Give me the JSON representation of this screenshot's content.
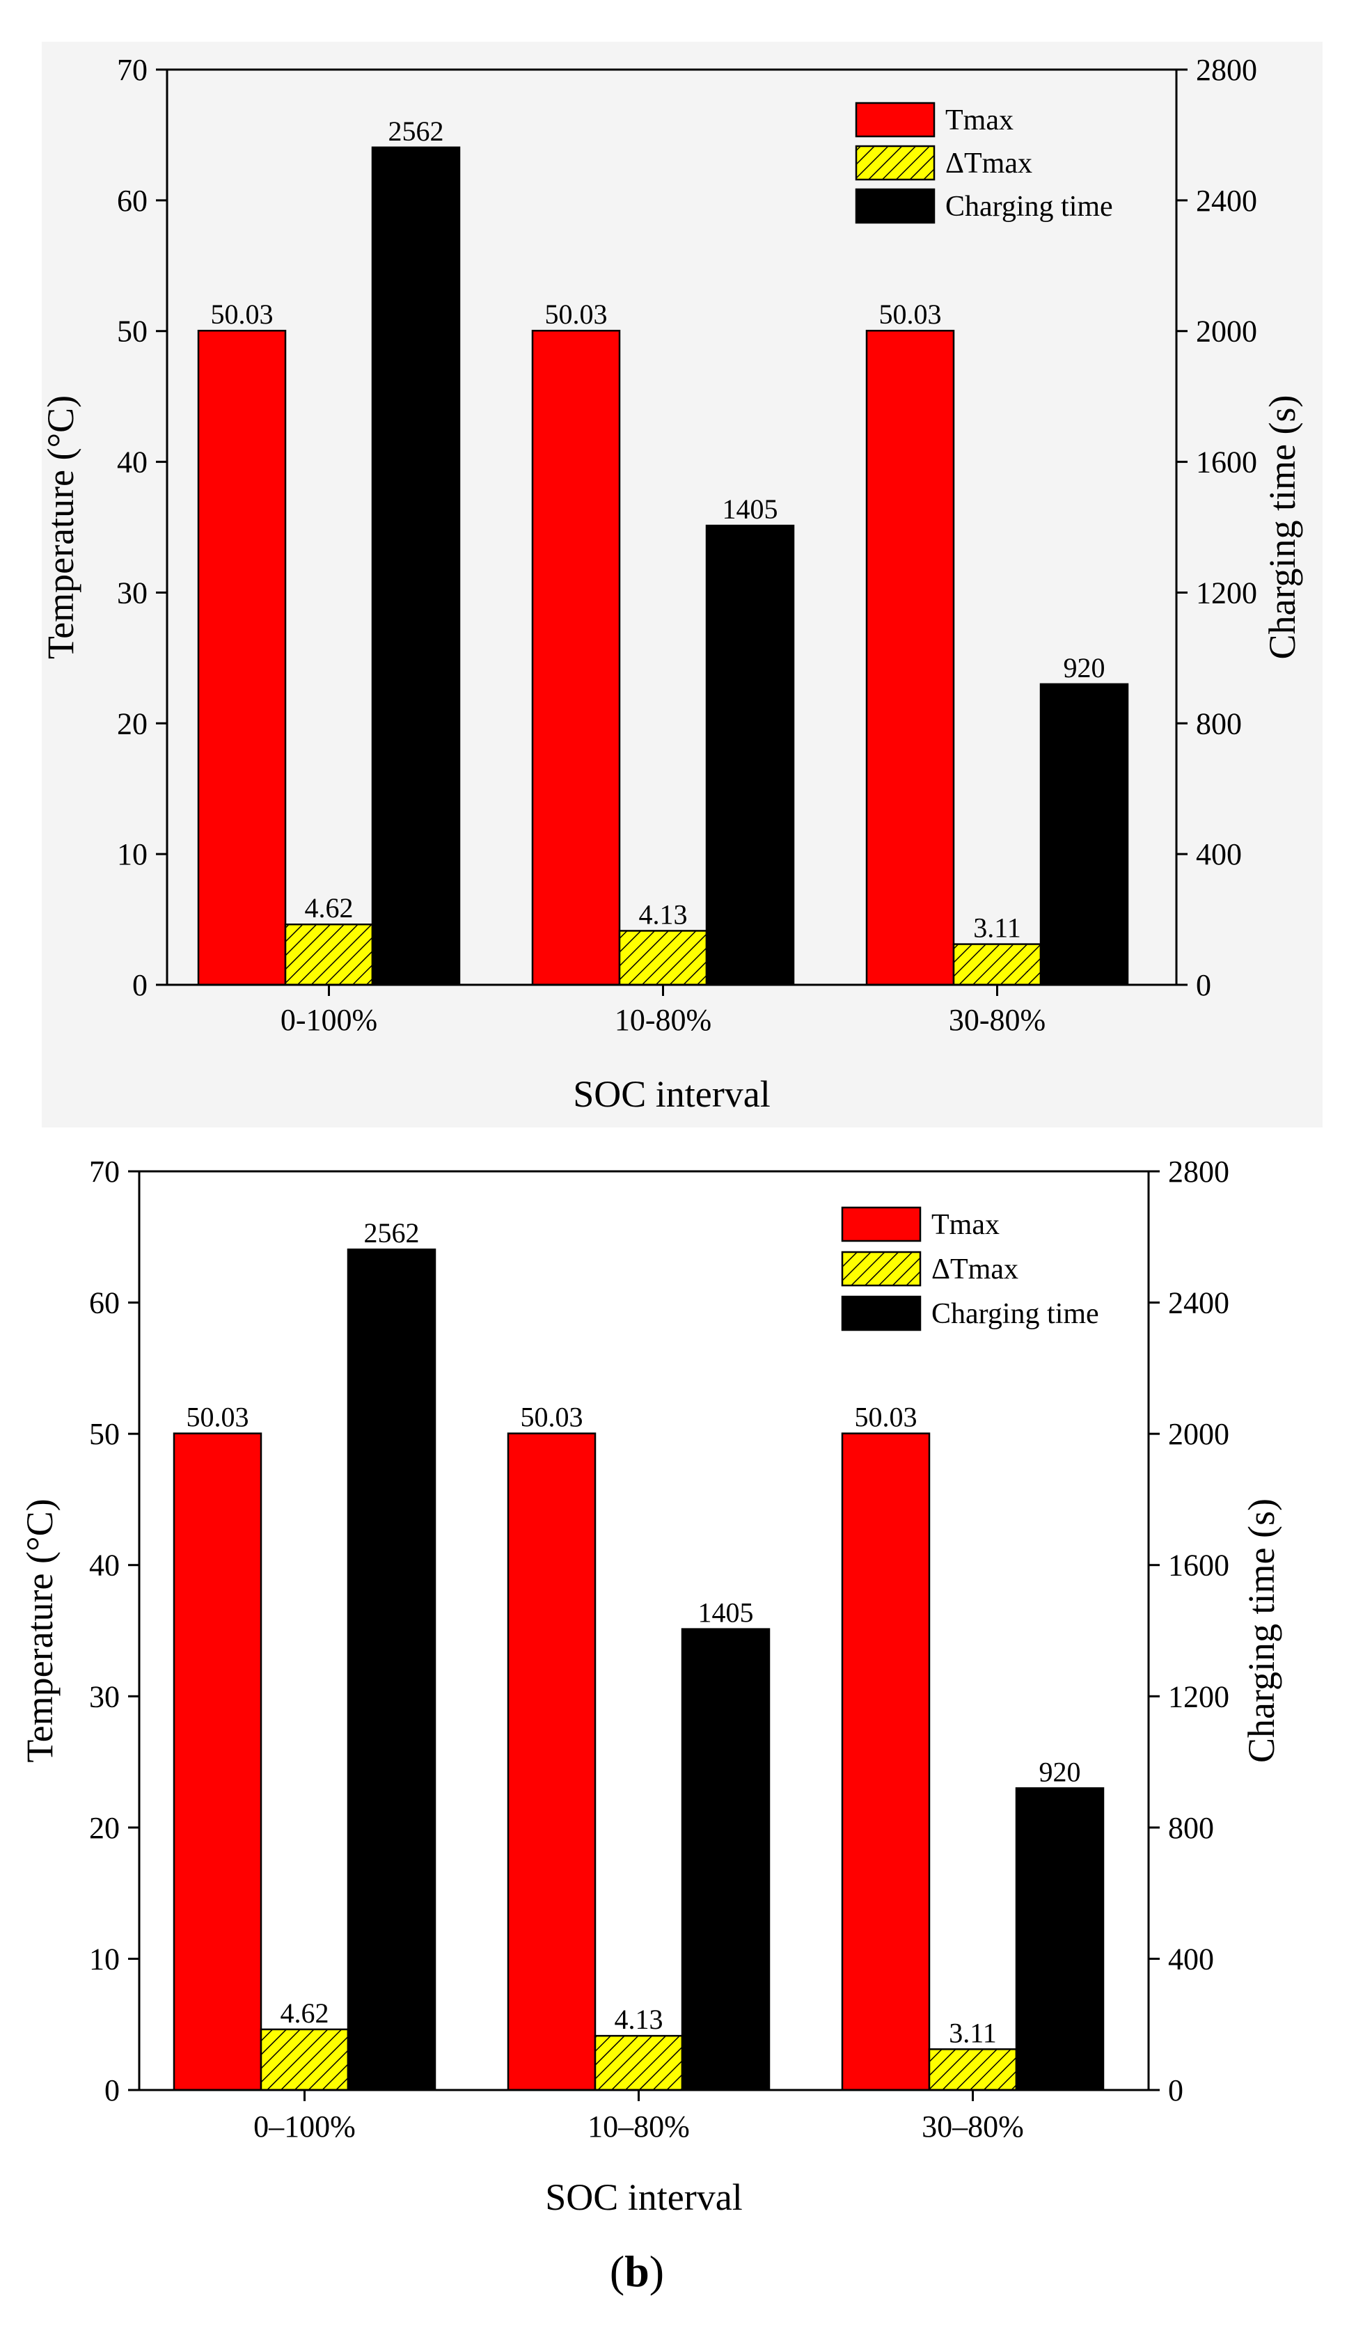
{
  "chart_data": [
    {
      "type": "bar",
      "panel_label": "",
      "categories": [
        "0-100%",
        "10-80%",
        "30-80%"
      ],
      "series": [
        {
          "name": "Tmax",
          "axis": "left",
          "color": "#ff0000",
          "pattern": "solid",
          "values": [
            50.03,
            50.03,
            50.03
          ],
          "labels": [
            "50.03",
            "50.03",
            "50.03"
          ]
        },
        {
          "name": "ΔTmax",
          "axis": "left",
          "color": "#ffff00",
          "pattern": "hatch",
          "values": [
            4.62,
            4.13,
            3.11
          ],
          "labels": [
            "4.62",
            "4.13",
            "3.11"
          ]
        },
        {
          "name": "Charging time",
          "axis": "right",
          "color": "#000000",
          "pattern": "solid",
          "values": [
            2562,
            1405,
            920
          ],
          "labels": [
            "2562",
            "1405",
            "920"
          ]
        }
      ],
      "title": "",
      "xlabel": "SOC interval",
      "ylabel": "Temperature (°C)",
      "y2label": "Charging time (s)",
      "ylim": [
        0,
        70
      ],
      "y2lim": [
        0,
        2800
      ],
      "yticks": [
        0,
        10,
        20,
        30,
        40,
        50,
        60,
        70
      ],
      "y2ticks": [
        0,
        400,
        800,
        1200,
        1600,
        2000,
        2400,
        2800
      ],
      "ytick_labels": [
        "0",
        "10",
        "20",
        "30",
        "40",
        "50",
        "60",
        "70"
      ],
      "y2tick_labels": [
        "0",
        "400",
        "800",
        "1200",
        "1600",
        "2000",
        "2400",
        "2800"
      ],
      "legend": "top-right",
      "grid": false
    },
    {
      "type": "bar",
      "panel_label": "b",
      "categories": [
        "0–100%",
        "10–80%",
        "30–80%"
      ],
      "series": [
        {
          "name": "Tmax",
          "axis": "left",
          "color": "#ff0000",
          "pattern": "solid",
          "values": [
            50.03,
            50.03,
            50.03
          ],
          "labels": [
            "50.03",
            "50.03",
            "50.03"
          ]
        },
        {
          "name": "ΔTmax",
          "axis": "left",
          "color": "#ffff00",
          "pattern": "hatch",
          "values": [
            4.62,
            4.13,
            3.11
          ],
          "labels": [
            "4.62",
            "4.13",
            "3.11"
          ]
        },
        {
          "name": "Charging time",
          "axis": "right",
          "color": "#000000",
          "pattern": "solid",
          "values": [
            2562,
            1405,
            920
          ],
          "labels": [
            "2562",
            "1405",
            "920"
          ]
        }
      ],
      "title": "",
      "xlabel": "SOC interval",
      "ylabel": "Temperature (°C)",
      "y2label": "Charging time (s)",
      "ylim": [
        0,
        70
      ],
      "y2lim": [
        0,
        2800
      ],
      "yticks": [
        0,
        10,
        20,
        30,
        40,
        50,
        60,
        70
      ],
      "y2ticks": [
        0,
        400,
        800,
        1200,
        1600,
        2000,
        2400,
        2800
      ],
      "ytick_labels": [
        "0",
        "10",
        "20",
        "30",
        "40",
        "50",
        "60",
        "70"
      ],
      "y2tick_labels": [
        "0",
        "400",
        "800",
        "1200",
        "1600",
        "2000",
        "2400",
        "2800"
      ],
      "legend": "top-right",
      "grid": false
    }
  ]
}
